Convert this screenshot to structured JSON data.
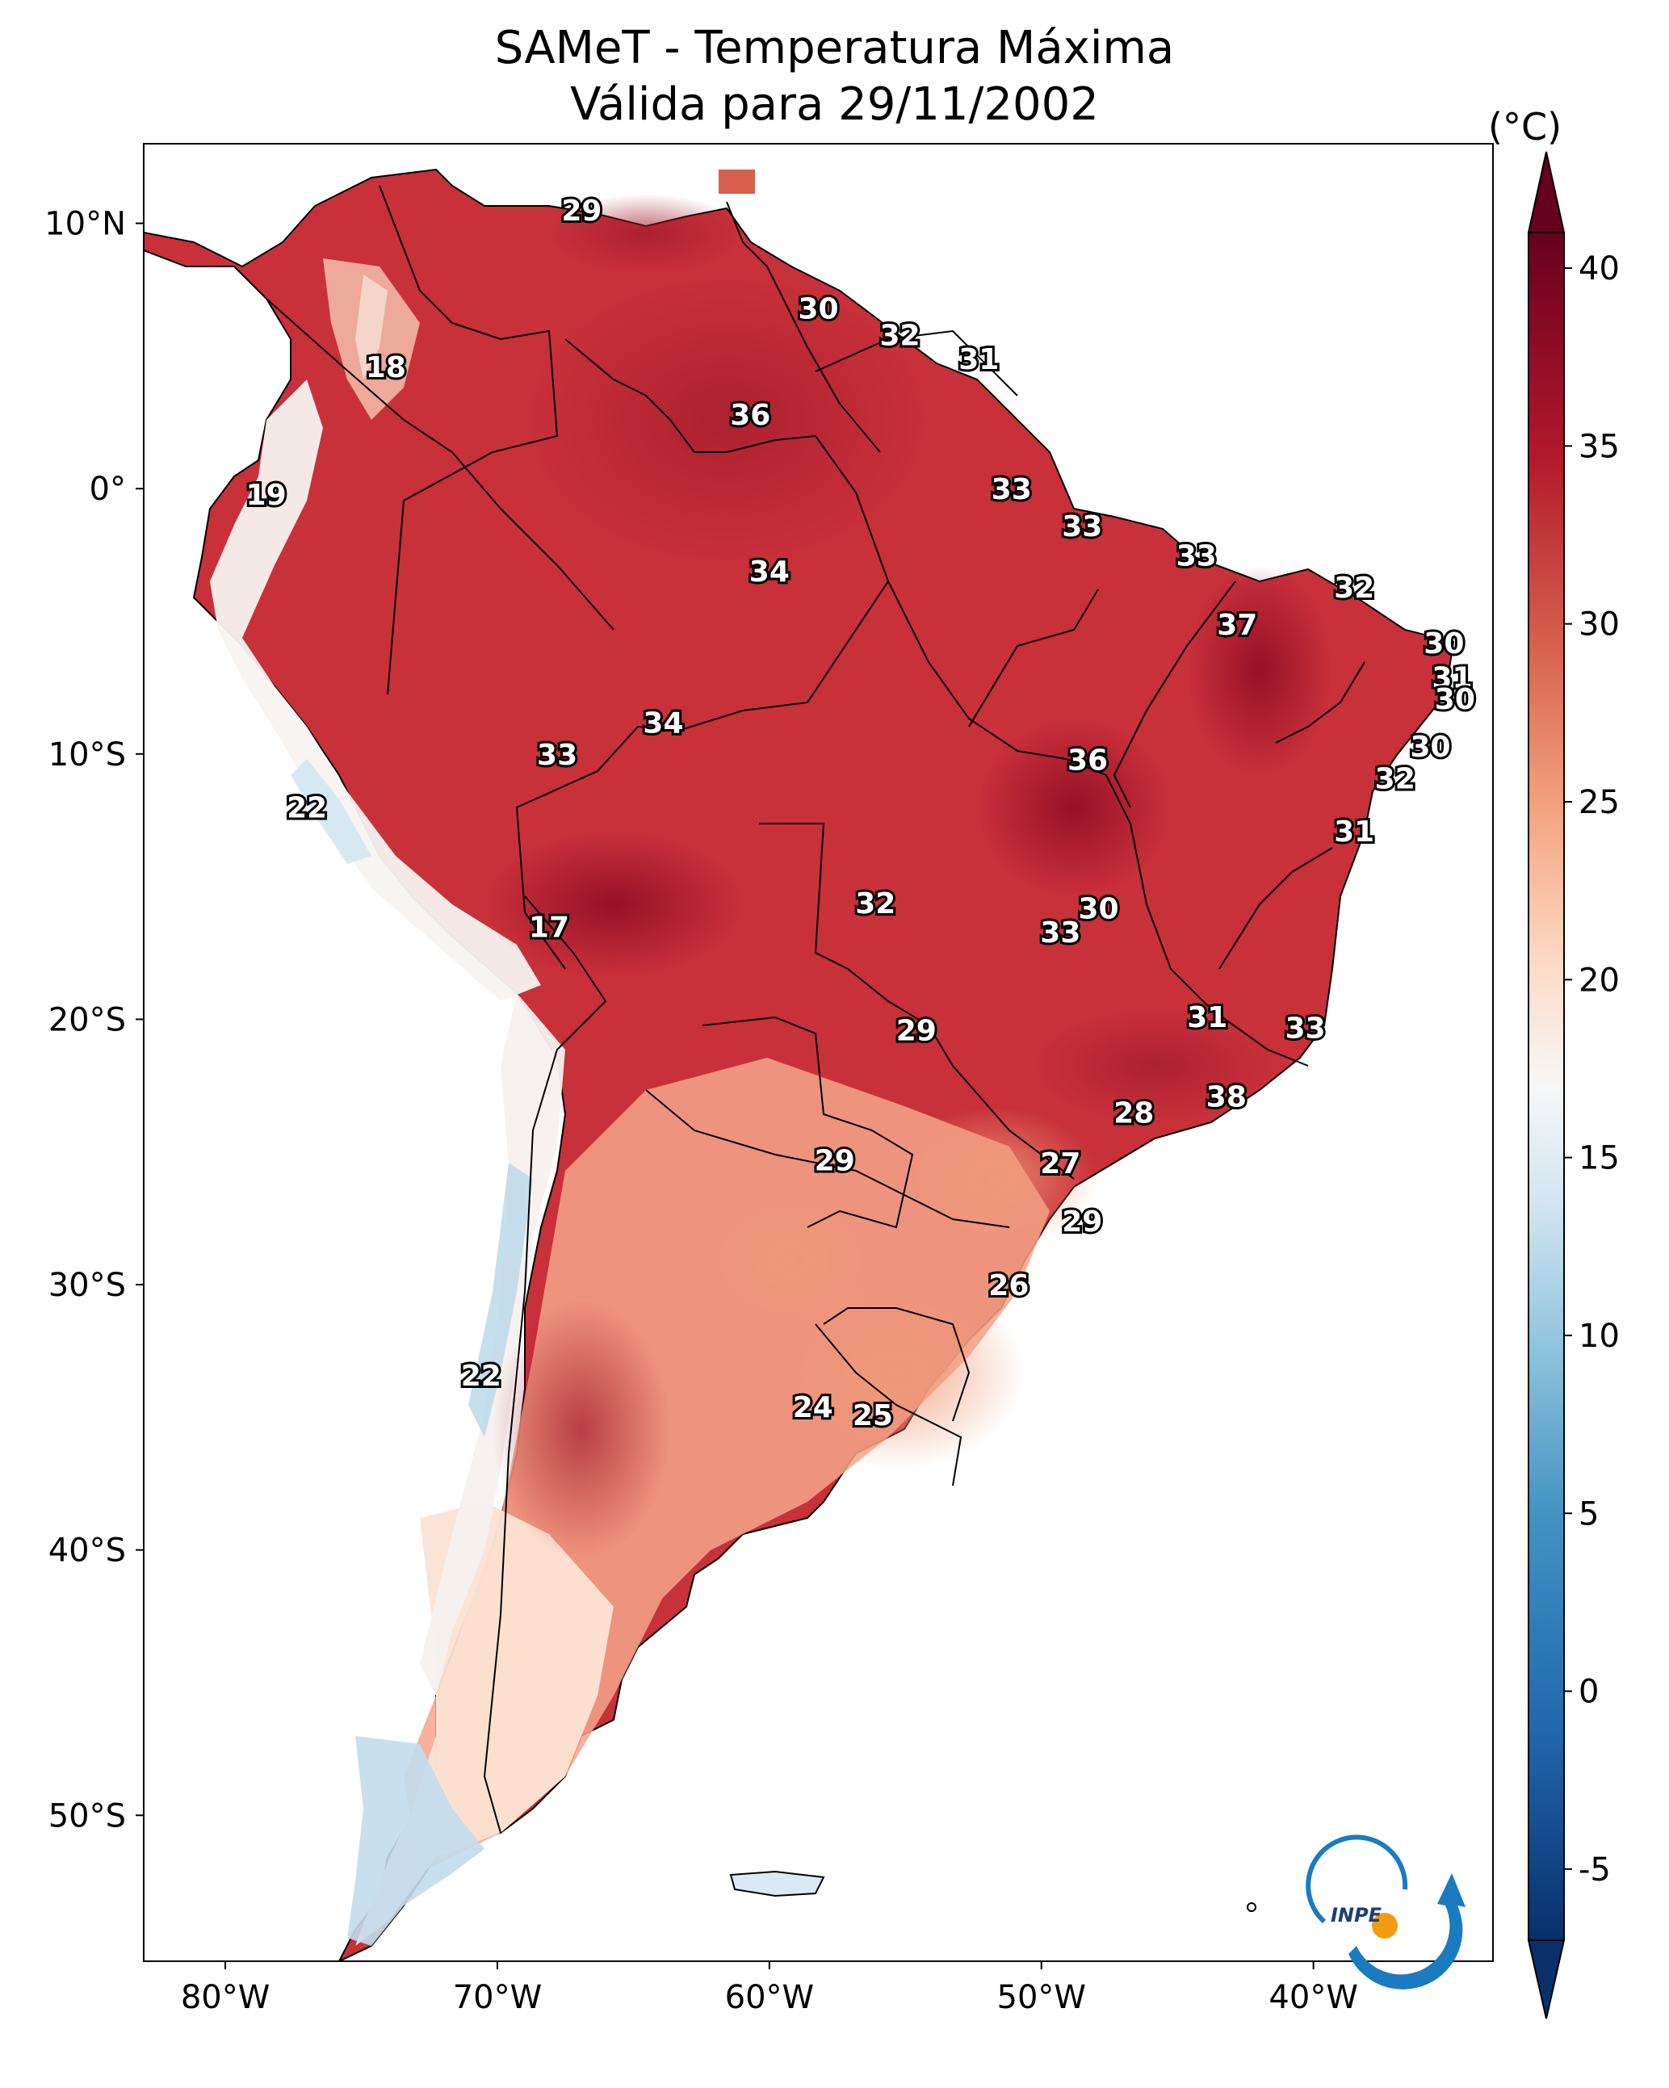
{
  "title": {
    "line1": "SAMeT - Temperatura Máxima",
    "line2": "Válida para 29/11/2002"
  },
  "colorbar": {
    "unit": "(°C)",
    "ticks": [
      "40",
      "35",
      "30",
      "25",
      "20",
      "15",
      "10",
      "5",
      "0",
      "-5"
    ],
    "range": [
      -7,
      41
    ],
    "colors": [
      "#08306b",
      "#2166ac",
      "#4393c3",
      "#92c5de",
      "#d1e5f0",
      "#f7f7f7",
      "#fddbc7",
      "#f4a582",
      "#d6604d",
      "#b2182b",
      "#67001f"
    ]
  },
  "axes": {
    "lat_labels": [
      "10°N",
      "0°",
      "10°S",
      "20°S",
      "30°S",
      "40°S",
      "50°S"
    ],
    "lon_labels": [
      "80°W",
      "70°W",
      "60°W",
      "50°W",
      "40°W"
    ]
  },
  "city_labels": [
    {
      "text": "29",
      "lon": -66.9,
      "lat": 10.5
    },
    {
      "text": "18",
      "lon": -74.1,
      "lat": 4.6
    },
    {
      "text": "19",
      "lon": -78.5,
      "lat": -0.2
    },
    {
      "text": "30",
      "lon": -58.2,
      "lat": 6.8
    },
    {
      "text": "32",
      "lon": -55.2,
      "lat": 5.8
    },
    {
      "text": "31",
      "lon": -52.3,
      "lat": 4.9
    },
    {
      "text": "36",
      "lon": -60.7,
      "lat": 2.8
    },
    {
      "text": "33",
      "lon": -51.1,
      "lat": 0.0
    },
    {
      "text": "33",
      "lon": -48.5,
      "lat": -1.4
    },
    {
      "text": "33",
      "lon": -44.3,
      "lat": -2.5
    },
    {
      "text": "34",
      "lon": -60.0,
      "lat": -3.1
    },
    {
      "text": "32",
      "lon": -38.5,
      "lat": -3.7
    },
    {
      "text": "37",
      "lon": -42.8,
      "lat": -5.1
    },
    {
      "text": "30",
      "lon": -35.2,
      "lat": -5.8
    },
    {
      "text": "31",
      "lon": -34.9,
      "lat": -7.1
    },
    {
      "text": "30",
      "lon": -34.8,
      "lat": -7.9
    },
    {
      "text": "34",
      "lon": -63.9,
      "lat": -8.8
    },
    {
      "text": "33",
      "lon": -67.8,
      "lat": -10.0
    },
    {
      "text": "36",
      "lon": -48.3,
      "lat": -10.2
    },
    {
      "text": "30",
      "lon": -35.7,
      "lat": -9.7
    },
    {
      "text": "32",
      "lon": -37.0,
      "lat": -10.9
    },
    {
      "text": "22",
      "lon": -77.0,
      "lat": -12.0
    },
    {
      "text": "31",
      "lon": -38.5,
      "lat": -12.9
    },
    {
      "text": "32",
      "lon": -56.1,
      "lat": -15.6
    },
    {
      "text": "30",
      "lon": -47.9,
      "lat": -15.8
    },
    {
      "text": "33",
      "lon": -49.3,
      "lat": -16.7
    },
    {
      "text": "17",
      "lon": -68.1,
      "lat": -16.5
    },
    {
      "text": "29",
      "lon": -54.6,
      "lat": -20.4
    },
    {
      "text": "31",
      "lon": -43.9,
      "lat": -19.9
    },
    {
      "text": "33",
      "lon": -40.3,
      "lat": -20.3
    },
    {
      "text": "38",
      "lon": -43.2,
      "lat": -22.9
    },
    {
      "text": "28",
      "lon": -46.6,
      "lat": -23.5
    },
    {
      "text": "29",
      "lon": -57.6,
      "lat": -25.3
    },
    {
      "text": "27",
      "lon": -49.3,
      "lat": -25.4
    },
    {
      "text": "29",
      "lon": -48.5,
      "lat": -27.6
    },
    {
      "text": "26",
      "lon": -51.2,
      "lat": -30.0
    },
    {
      "text": "22",
      "lon": -70.6,
      "lat": -33.4
    },
    {
      "text": "24",
      "lon": -58.4,
      "lat": -34.6
    },
    {
      "text": "25",
      "lon": -56.2,
      "lat": -34.9
    }
  ]
}
